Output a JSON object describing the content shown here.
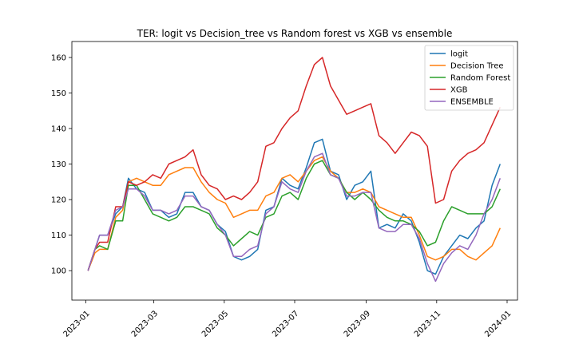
{
  "chart_data": {
    "type": "line",
    "title": "TER: logit vs Decision_tree vs Random forest vs XGB vs ensemble",
    "xlabel": "",
    "ylabel": "",
    "grid": false,
    "legend_position": "top-right",
    "x_range": [
      "2022-12-20",
      "2024-01-10"
    ],
    "y_range": [
      91.7,
      164.5
    ],
    "x_ticks": [
      "2023-01",
      "2023-03",
      "2023-05",
      "2023-07",
      "2023-09",
      "2023-11",
      "2024-01"
    ],
    "x_tick_dates": [
      "2023-01-01",
      "2023-03-01",
      "2023-05-01",
      "2023-07-01",
      "2023-09-01",
      "2023-11-01",
      "2024-01-01"
    ],
    "y_ticks": [
      "100",
      "110",
      "120",
      "130",
      "140",
      "150",
      "160"
    ],
    "y_tick_values": [
      100,
      110,
      120,
      130,
      140,
      150,
      160
    ],
    "series": [
      {
        "name": "logit",
        "color": "#1f77b4",
        "points": [
          [
            "2023-01-03",
            100
          ],
          [
            "2023-01-09",
            106
          ],
          [
            "2023-01-13",
            110
          ],
          [
            "2023-01-20",
            110
          ],
          [
            "2023-01-27",
            116
          ],
          [
            "2023-02-02",
            118
          ],
          [
            "2023-02-07",
            126
          ],
          [
            "2023-02-14",
            123
          ],
          [
            "2023-02-21",
            122
          ],
          [
            "2023-02-28",
            117
          ],
          [
            "2023-03-07",
            117
          ],
          [
            "2023-03-14",
            115
          ],
          [
            "2023-03-21",
            116
          ],
          [
            "2023-03-28",
            122
          ],
          [
            "2023-04-04",
            122
          ],
          [
            "2023-04-11",
            118
          ],
          [
            "2023-04-18",
            117
          ],
          [
            "2023-04-25",
            113
          ],
          [
            "2023-05-02",
            111
          ],
          [
            "2023-05-09",
            104
          ],
          [
            "2023-05-16",
            103
          ],
          [
            "2023-05-23",
            104
          ],
          [
            "2023-05-30",
            106
          ],
          [
            "2023-06-06",
            117
          ],
          [
            "2023-06-13",
            118
          ],
          [
            "2023-06-20",
            126
          ],
          [
            "2023-06-27",
            124
          ],
          [
            "2023-07-04",
            123
          ],
          [
            "2023-07-11",
            129
          ],
          [
            "2023-07-18",
            136
          ],
          [
            "2023-07-25",
            137
          ],
          [
            "2023-08-01",
            128
          ],
          [
            "2023-08-08",
            127
          ],
          [
            "2023-08-15",
            120
          ],
          [
            "2023-08-22",
            124
          ],
          [
            "2023-08-29",
            125
          ],
          [
            "2023-09-05",
            128
          ],
          [
            "2023-09-12",
            112
          ],
          [
            "2023-09-19",
            113
          ],
          [
            "2023-09-26",
            112
          ],
          [
            "2023-10-03",
            116
          ],
          [
            "2023-10-10",
            114
          ],
          [
            "2023-10-17",
            108
          ],
          [
            "2023-10-24",
            100
          ],
          [
            "2023-10-31",
            99
          ],
          [
            "2023-11-07",
            104
          ],
          [
            "2023-11-14",
            107
          ],
          [
            "2023-11-21",
            110
          ],
          [
            "2023-11-28",
            109
          ],
          [
            "2023-12-05",
            112
          ],
          [
            "2023-12-12",
            114
          ],
          [
            "2023-12-19",
            124
          ],
          [
            "2023-12-26",
            130
          ]
        ]
      },
      {
        "name": "Decision Tree",
        "color": "#ff7f0e",
        "points": [
          [
            "2023-01-03",
            100
          ],
          [
            "2023-01-09",
            105
          ],
          [
            "2023-01-13",
            106
          ],
          [
            "2023-01-20",
            106
          ],
          [
            "2023-01-27",
            115
          ],
          [
            "2023-02-02",
            117
          ],
          [
            "2023-02-07",
            125
          ],
          [
            "2023-02-14",
            126
          ],
          [
            "2023-02-21",
            125
          ],
          [
            "2023-02-28",
            124
          ],
          [
            "2023-03-07",
            124
          ],
          [
            "2023-03-14",
            127
          ],
          [
            "2023-03-21",
            128
          ],
          [
            "2023-03-28",
            129
          ],
          [
            "2023-04-04",
            129
          ],
          [
            "2023-04-11",
            125
          ],
          [
            "2023-04-18",
            122
          ],
          [
            "2023-04-25",
            120
          ],
          [
            "2023-05-02",
            119
          ],
          [
            "2023-05-09",
            115
          ],
          [
            "2023-05-16",
            116
          ],
          [
            "2023-05-23",
            117
          ],
          [
            "2023-05-30",
            117
          ],
          [
            "2023-06-06",
            121
          ],
          [
            "2023-06-13",
            122
          ],
          [
            "2023-06-20",
            126
          ],
          [
            "2023-06-27",
            127
          ],
          [
            "2023-07-04",
            125
          ],
          [
            "2023-07-11",
            128
          ],
          [
            "2023-07-18",
            131
          ],
          [
            "2023-07-25",
            132
          ],
          [
            "2023-08-01",
            128
          ],
          [
            "2023-08-08",
            126
          ],
          [
            "2023-08-15",
            122
          ],
          [
            "2023-08-22",
            122
          ],
          [
            "2023-08-29",
            123
          ],
          [
            "2023-09-05",
            122
          ],
          [
            "2023-09-12",
            118
          ],
          [
            "2023-09-19",
            117
          ],
          [
            "2023-09-26",
            116
          ],
          [
            "2023-10-03",
            115
          ],
          [
            "2023-10-10",
            115
          ],
          [
            "2023-10-17",
            110
          ],
          [
            "2023-10-24",
            104
          ],
          [
            "2023-10-31",
            103
          ],
          [
            "2023-11-07",
            104
          ],
          [
            "2023-11-14",
            106
          ],
          [
            "2023-11-21",
            106
          ],
          [
            "2023-11-28",
            104
          ],
          [
            "2023-12-05",
            103
          ],
          [
            "2023-12-12",
            105
          ],
          [
            "2023-12-19",
            107
          ],
          [
            "2023-12-26",
            112
          ]
        ]
      },
      {
        "name": "Random Forest",
        "color": "#2ca02c",
        "points": [
          [
            "2023-01-03",
            100
          ],
          [
            "2023-01-09",
            106
          ],
          [
            "2023-01-13",
            107
          ],
          [
            "2023-01-20",
            106
          ],
          [
            "2023-01-27",
            114
          ],
          [
            "2023-02-02",
            114
          ],
          [
            "2023-02-07",
            124
          ],
          [
            "2023-02-14",
            124
          ],
          [
            "2023-02-21",
            120
          ],
          [
            "2023-02-28",
            116
          ],
          [
            "2023-03-07",
            115
          ],
          [
            "2023-03-14",
            114
          ],
          [
            "2023-03-21",
            115
          ],
          [
            "2023-03-28",
            118
          ],
          [
            "2023-04-04",
            118
          ],
          [
            "2023-04-11",
            117
          ],
          [
            "2023-04-18",
            116
          ],
          [
            "2023-04-25",
            112
          ],
          [
            "2023-05-02",
            110
          ],
          [
            "2023-05-09",
            107
          ],
          [
            "2023-05-16",
            109
          ],
          [
            "2023-05-23",
            111
          ],
          [
            "2023-05-30",
            110
          ],
          [
            "2023-06-06",
            115
          ],
          [
            "2023-06-13",
            116
          ],
          [
            "2023-06-20",
            121
          ],
          [
            "2023-06-27",
            122
          ],
          [
            "2023-07-04",
            120
          ],
          [
            "2023-07-11",
            126
          ],
          [
            "2023-07-18",
            130
          ],
          [
            "2023-07-25",
            131
          ],
          [
            "2023-08-01",
            127
          ],
          [
            "2023-08-08",
            126
          ],
          [
            "2023-08-15",
            122
          ],
          [
            "2023-08-22",
            120
          ],
          [
            "2023-08-29",
            122
          ],
          [
            "2023-09-05",
            120
          ],
          [
            "2023-09-12",
            117
          ],
          [
            "2023-09-19",
            115
          ],
          [
            "2023-09-26",
            114
          ],
          [
            "2023-10-03",
            114
          ],
          [
            "2023-10-10",
            113
          ],
          [
            "2023-10-17",
            111
          ],
          [
            "2023-10-24",
            107
          ],
          [
            "2023-10-31",
            108
          ],
          [
            "2023-11-07",
            114
          ],
          [
            "2023-11-14",
            118
          ],
          [
            "2023-11-21",
            117
          ],
          [
            "2023-11-28",
            116
          ],
          [
            "2023-12-05",
            116
          ],
          [
            "2023-12-12",
            116
          ],
          [
            "2023-12-19",
            118
          ],
          [
            "2023-12-26",
            123
          ]
        ]
      },
      {
        "name": "XGB",
        "color": "#d62728",
        "points": [
          [
            "2023-01-03",
            100
          ],
          [
            "2023-01-09",
            106
          ],
          [
            "2023-01-13",
            108
          ],
          [
            "2023-01-20",
            108
          ],
          [
            "2023-01-27",
            118
          ],
          [
            "2023-02-02",
            118
          ],
          [
            "2023-02-07",
            125
          ],
          [
            "2023-02-14",
            124
          ],
          [
            "2023-02-21",
            125
          ],
          [
            "2023-02-28",
            127
          ],
          [
            "2023-03-07",
            126
          ],
          [
            "2023-03-14",
            130
          ],
          [
            "2023-03-21",
            131
          ],
          [
            "2023-03-28",
            132
          ],
          [
            "2023-04-04",
            134
          ],
          [
            "2023-04-11",
            127
          ],
          [
            "2023-04-18",
            124
          ],
          [
            "2023-04-25",
            123
          ],
          [
            "2023-05-02",
            120
          ],
          [
            "2023-05-09",
            121
          ],
          [
            "2023-05-16",
            120
          ],
          [
            "2023-05-23",
            122
          ],
          [
            "2023-05-30",
            125
          ],
          [
            "2023-06-06",
            135
          ],
          [
            "2023-06-13",
            136
          ],
          [
            "2023-06-20",
            140
          ],
          [
            "2023-06-27",
            143
          ],
          [
            "2023-07-04",
            145
          ],
          [
            "2023-07-11",
            152
          ],
          [
            "2023-07-18",
            158
          ],
          [
            "2023-07-25",
            160
          ],
          [
            "2023-08-01",
            152
          ],
          [
            "2023-08-08",
            148
          ],
          [
            "2023-08-15",
            144
          ],
          [
            "2023-08-22",
            145
          ],
          [
            "2023-08-29",
            146
          ],
          [
            "2023-09-05",
            147
          ],
          [
            "2023-09-12",
            138
          ],
          [
            "2023-09-19",
            136
          ],
          [
            "2023-09-26",
            133
          ],
          [
            "2023-10-03",
            136
          ],
          [
            "2023-10-10",
            139
          ],
          [
            "2023-10-17",
            138
          ],
          [
            "2023-10-24",
            135
          ],
          [
            "2023-10-31",
            119
          ],
          [
            "2023-11-07",
            120
          ],
          [
            "2023-11-14",
            128
          ],
          [
            "2023-11-21",
            131
          ],
          [
            "2023-11-28",
            133
          ],
          [
            "2023-12-05",
            134
          ],
          [
            "2023-12-12",
            136
          ],
          [
            "2023-12-19",
            141
          ],
          [
            "2023-12-26",
            146
          ]
        ]
      },
      {
        "name": "ENSEMBLE",
        "color": "#9467bd",
        "points": [
          [
            "2023-01-03",
            100
          ],
          [
            "2023-01-09",
            106
          ],
          [
            "2023-01-13",
            110
          ],
          [
            "2023-01-20",
            110
          ],
          [
            "2023-01-27",
            117
          ],
          [
            "2023-02-02",
            118
          ],
          [
            "2023-02-07",
            123
          ],
          [
            "2023-02-14",
            123
          ],
          [
            "2023-02-21",
            121
          ],
          [
            "2023-02-28",
            117
          ],
          [
            "2023-03-07",
            117
          ],
          [
            "2023-03-14",
            116
          ],
          [
            "2023-03-21",
            117
          ],
          [
            "2023-03-28",
            121
          ],
          [
            "2023-04-04",
            121
          ],
          [
            "2023-04-11",
            118
          ],
          [
            "2023-04-18",
            117
          ],
          [
            "2023-04-25",
            113
          ],
          [
            "2023-05-02",
            110
          ],
          [
            "2023-05-09",
            104
          ],
          [
            "2023-05-16",
            104
          ],
          [
            "2023-05-23",
            106
          ],
          [
            "2023-05-30",
            107
          ],
          [
            "2023-06-06",
            116
          ],
          [
            "2023-06-13",
            118
          ],
          [
            "2023-06-20",
            125
          ],
          [
            "2023-06-27",
            123
          ],
          [
            "2023-07-04",
            122
          ],
          [
            "2023-07-11",
            128
          ],
          [
            "2023-07-18",
            132
          ],
          [
            "2023-07-25",
            133
          ],
          [
            "2023-08-01",
            127
          ],
          [
            "2023-08-08",
            126
          ],
          [
            "2023-08-15",
            121
          ],
          [
            "2023-08-22",
            121
          ],
          [
            "2023-08-29",
            122
          ],
          [
            "2023-09-05",
            122
          ],
          [
            "2023-09-12",
            112
          ],
          [
            "2023-09-19",
            111
          ],
          [
            "2023-09-26",
            111
          ],
          [
            "2023-10-03",
            113
          ],
          [
            "2023-10-10",
            113
          ],
          [
            "2023-10-17",
            109
          ],
          [
            "2023-10-24",
            102
          ],
          [
            "2023-10-31",
            97
          ],
          [
            "2023-11-07",
            102
          ],
          [
            "2023-11-14",
            105
          ],
          [
            "2023-11-21",
            107
          ],
          [
            "2023-11-28",
            106
          ],
          [
            "2023-12-05",
            110
          ],
          [
            "2023-12-12",
            116
          ],
          [
            "2023-12-19",
            120
          ],
          [
            "2023-12-26",
            126
          ]
        ]
      }
    ]
  }
}
